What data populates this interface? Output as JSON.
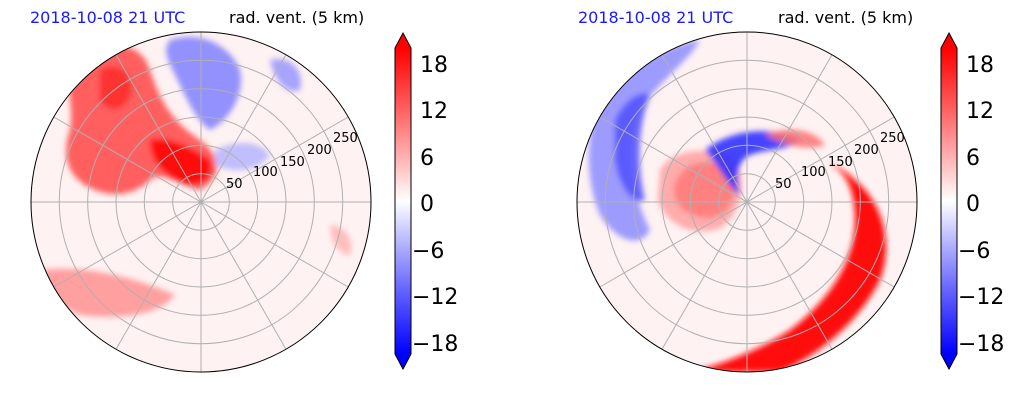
{
  "chart_data": [
    {
      "type": "heatmap",
      "projection": "polar",
      "title_left": "2018-10-08 21 UTC",
      "title_right": "rad. vent. (5 km)",
      "radial_ticks": [
        "50",
        "100",
        "150",
        "200",
        "250"
      ],
      "radial_max": 300,
      "colorbar": {
        "ticks": [
          "18",
          "12",
          "6",
          "0",
          "−6",
          "−12",
          "−18"
        ],
        "range": [
          -20,
          20
        ],
        "extend": "both"
      },
      "features": [
        {
          "name": "positive-blob-nw",
          "sign": "positive"
        },
        {
          "name": "negative-blob-n",
          "sign": "negative"
        },
        {
          "name": "positive-band-sw",
          "sign": "positive"
        }
      ]
    },
    {
      "type": "heatmap",
      "projection": "polar",
      "title_left": "2018-10-08 21 UTC",
      "title_right": "rad. vent. (5 km)",
      "radial_ticks": [
        "50",
        "100",
        "150",
        "200",
        "250"
      ],
      "radial_max": 300,
      "colorbar": {
        "ticks": [
          "18",
          "12",
          "6",
          "0",
          "−6",
          "−12",
          "−18"
        ],
        "range": [
          -20,
          20
        ],
        "extend": "both"
      },
      "features": [
        {
          "name": "negative-band-west",
          "sign": "negative"
        },
        {
          "name": "positive-core-center",
          "sign": "positive"
        },
        {
          "name": "positive-spiral-band",
          "sign": "positive"
        }
      ]
    }
  ],
  "colors": {
    "positive": "#ff0000",
    "negative": "#0000ff",
    "neutral": "#fff4f4",
    "title_left": "#1a1aff",
    "grid": "#b0b0b0"
  }
}
